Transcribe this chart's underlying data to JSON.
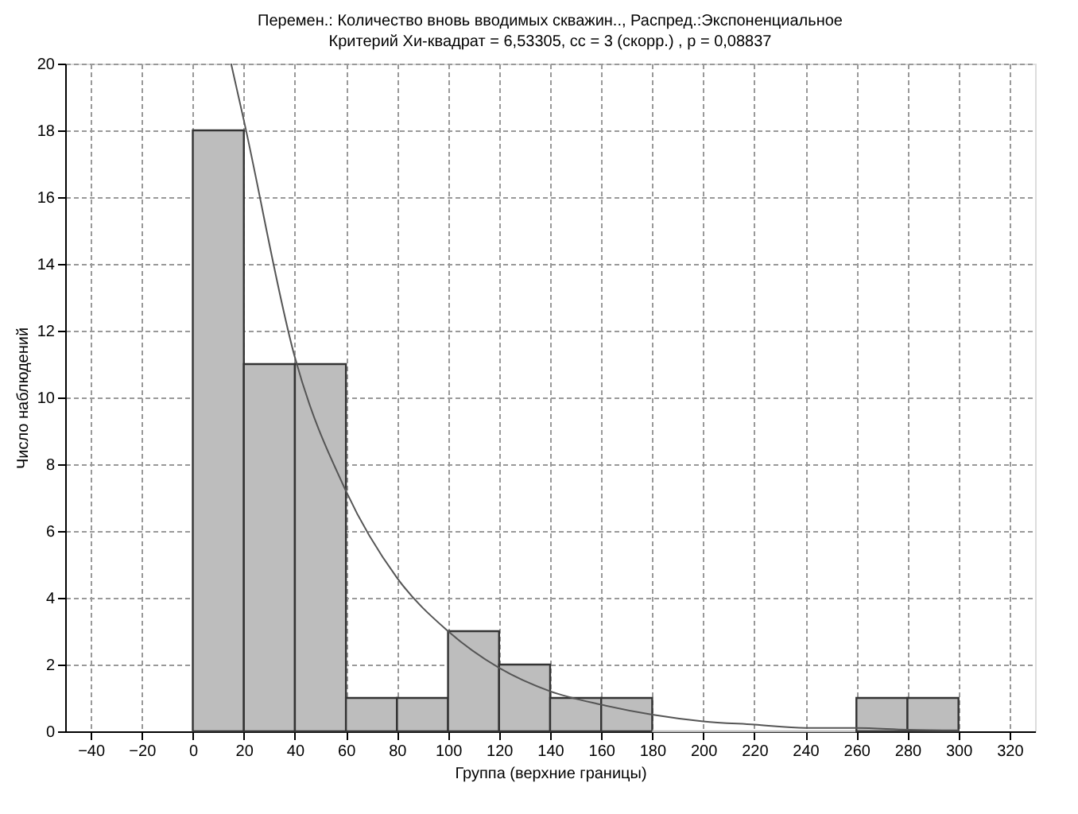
{
  "chart_data": {
    "type": "histogram",
    "title": "Перемен.: Количество вновь вводимых скважин.., Распред.:Экспоненциальное",
    "subtitle": "Критерий Хи-квадрат = 6,53305, сс = 3 (скорр.) , p = 0,08837",
    "xlabel": "Группа (верхние границы)",
    "ylabel": "Число наблюдений",
    "bins": [
      0,
      20,
      40,
      60,
      80,
      100,
      120,
      140,
      160,
      180,
      200,
      220,
      240,
      260,
      280,
      300
    ],
    "values": [
      18,
      11,
      11,
      1,
      1,
      3,
      2,
      1,
      1,
      0,
      0,
      0,
      0,
      1,
      1
    ],
    "color": "#bdbdbd",
    "series": [
      {
        "type": "line",
        "color": "#555555",
        "x": [
          15,
          20,
          40,
          60,
          80,
          100,
          120,
          140,
          160,
          180,
          200,
          220,
          240,
          260,
          280,
          300
        ],
        "values": [
          20,
          18.3,
          11.2,
          7.2,
          4.6,
          3.0,
          1.9,
          1.2,
          0.8,
          0.5,
          0.3,
          0.2,
          0.1,
          0.1,
          0.05,
          0.03
        ]
      }
    ],
    "xlim": [
      -50,
      330
    ],
    "xticks": [
      -40,
      -20,
      0,
      20,
      40,
      60,
      80,
      100,
      120,
      140,
      160,
      180,
      200,
      220,
      240,
      260,
      280,
      300,
      320
    ],
    "ylim": [
      0,
      20
    ],
    "yticks": [
      0,
      2,
      4,
      6,
      8,
      10,
      12,
      14,
      16,
      18,
      20
    ],
    "grid": true
  }
}
